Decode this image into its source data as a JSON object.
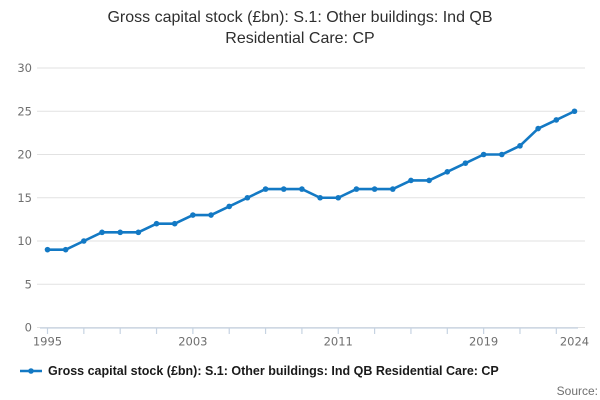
{
  "header": {
    "line1": "Gross capital stock (£bn): S.1: Other buildings: Ind QB",
    "line2": "Residential Care: CP"
  },
  "legend": {
    "label": "Gross capital stock (£bn): S.1: Other buildings: Ind QB Residential Care: CP"
  },
  "footer": {
    "source": "Source:"
  },
  "colors": {
    "line": "#1379c4",
    "grid": "#e2e2e2",
    "axis": "#c6d3e2",
    "tick_text": "#6f6f6f"
  },
  "chart_data": {
    "type": "line",
    "title": "Gross capital stock (£bn): S.1: Other buildings: Ind QB Residential Care: CP",
    "xlabel": "",
    "ylabel": "",
    "x": [
      1995,
      1996,
      1997,
      1998,
      1999,
      2000,
      2001,
      2002,
      2003,
      2004,
      2005,
      2006,
      2007,
      2008,
      2009,
      2010,
      2011,
      2012,
      2013,
      2014,
      2015,
      2016,
      2017,
      2018,
      2019,
      2020,
      2021,
      2022,
      2023,
      2024
    ],
    "series": [
      {
        "name": "Gross capital stock (£bn): S.1: Other buildings: Ind QB Residential Care: CP",
        "values": [
          9,
          9,
          10,
          11,
          11,
          11,
          12,
          12,
          13,
          13,
          14,
          15,
          16,
          16,
          16,
          15,
          15,
          16,
          16,
          16,
          17,
          17,
          18,
          19,
          20,
          20,
          21,
          23,
          24,
          25
        ]
      }
    ],
    "ylim": [
      0,
      30
    ],
    "yticks": [
      0,
      5,
      10,
      15,
      20,
      25,
      30
    ],
    "xtick_marks": [
      1995,
      1997,
      1999,
      2001,
      2003,
      2005,
      2007,
      2009,
      2011,
      2013,
      2015,
      2017,
      2019,
      2021,
      2023
    ],
    "xtick_labels": [
      1995,
      2003,
      2011,
      2019,
      2024
    ],
    "grid": true,
    "legend_position": "bottom",
    "marker": "circle"
  }
}
